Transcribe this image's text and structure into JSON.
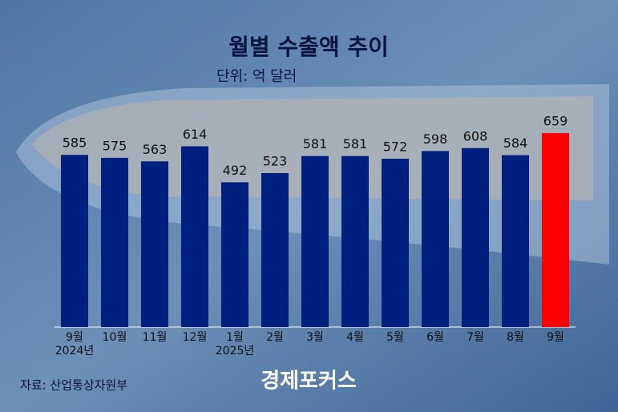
{
  "chart_data": {
    "type": "bar",
    "title": "월별 수출액 추이",
    "subtitle": "단위: 억 달러",
    "categories": [
      "9월",
      "10월",
      "11월",
      "12월",
      "1월",
      "2월",
      "3월",
      "4월",
      "5월",
      "6월",
      "7월",
      "8월",
      "9월"
    ],
    "year_labels": [
      "2024년",
      null,
      null,
      null,
      "2025년",
      null,
      null,
      null,
      null,
      null,
      null,
      null,
      null
    ],
    "values": [
      585,
      575,
      563,
      614,
      492,
      523,
      581,
      581,
      572,
      598,
      608,
      584,
      659
    ],
    "colors": [
      "#002080",
      "#002080",
      "#002080",
      "#002080",
      "#002080",
      "#002080",
      "#002080",
      "#002080",
      "#002080",
      "#002080",
      "#002080",
      "#002080",
      "#ff0000"
    ],
    "ylim": [
      0,
      700
    ],
    "source": "자료: 산업통상자원부",
    "brand": "경제포커스"
  }
}
